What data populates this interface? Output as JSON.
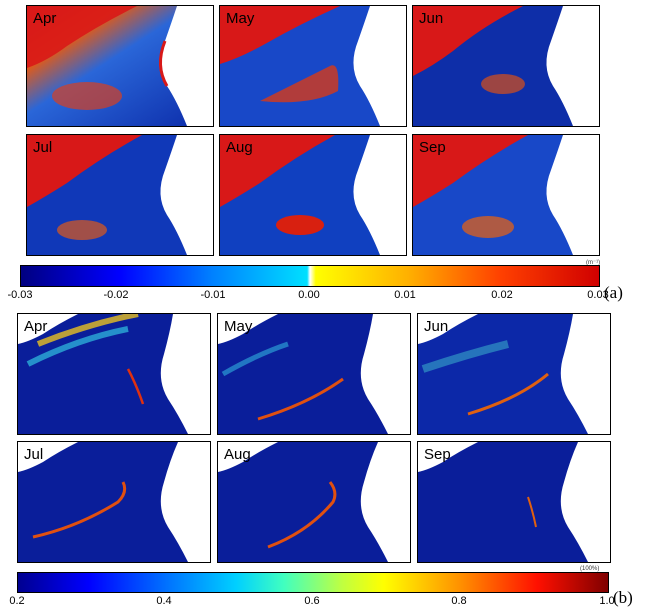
{
  "figure_a": {
    "label": "(a)",
    "unit": "(m⁻¹)",
    "colorbar_ticks": [
      "-0.03",
      "-0.02",
      "-0.01",
      "0.00",
      "0.01",
      "0.02",
      "0.03"
    ],
    "months": [
      "Apr",
      "May",
      "Jun",
      "Jul",
      "Aug",
      "Sep"
    ]
  },
  "figure_b": {
    "label": "(b)",
    "unit": "(100%)",
    "colorbar_ticks": [
      "0.2",
      "0.4",
      "0.6",
      "0.8",
      "1.0"
    ],
    "months": [
      "Apr",
      "May",
      "Jun",
      "Jul",
      "Aug",
      "Sep"
    ]
  },
  "colors": {
    "ocean_low": "#0a1e9a",
    "coast_high": "#e01010",
    "land": "#ffffff"
  }
}
